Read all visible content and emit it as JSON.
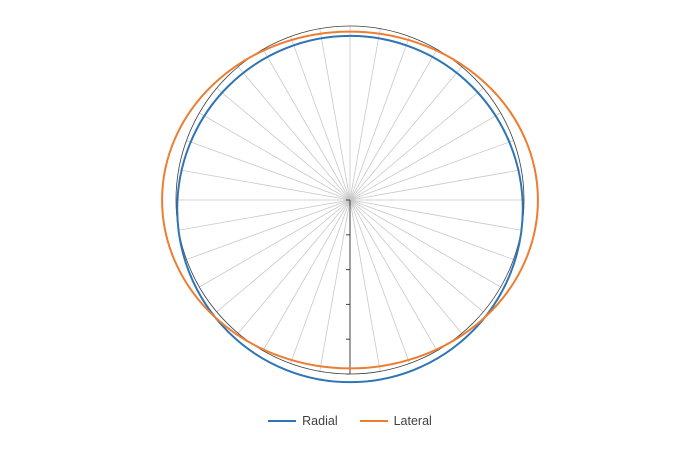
{
  "chart_data": {
    "type": "radar",
    "spokes": 36,
    "angle_step_deg": 10,
    "r_max": 1.0,
    "r_ticks": [
      0,
      0.2,
      0.4,
      0.6,
      0.8,
      1.0
    ],
    "grid": true,
    "legend_position": "bottom-center",
    "series": [
      {
        "name": "Radial",
        "color": "#2E75B6",
        "shape": "ellipse",
        "angles_deg": [
          0,
          90,
          180,
          270
        ],
        "values": [
          0.995,
          0.993,
          0.995,
          0.993
        ],
        "center_offset": {
          "x": 0.0,
          "y": 0.052
        }
      },
      {
        "name": "Lateral",
        "color": "#ED7D31",
        "shape": "ellipse",
        "angles_deg": [
          0,
          90,
          180,
          270
        ],
        "values": [
          0.968,
          1.08,
          0.968,
          1.08
        ],
        "center_offset": {
          "x": 0.0,
          "y": 0.0
        }
      }
    ]
  }
}
